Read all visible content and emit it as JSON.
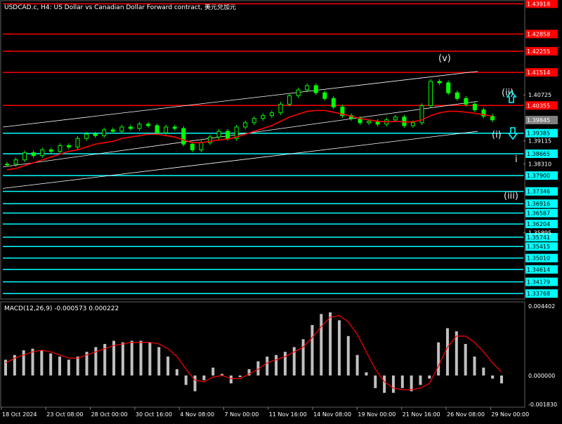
{
  "chart_data": {
    "type": "line",
    "title": "USDCAD.c, H4: US Dollar vs Canadian Dollar Forward contract, 美元兑加元",
    "price_axis": {
      "ylim": [
        1.336,
        1.44
      ],
      "tick_labels": [
        "1.40725",
        "1.39115",
        "1.38310",
        "1.35895"
      ]
    },
    "time_axis": {
      "labels": [
        "18 Oct 2024",
        "23 Oct 08:00",
        "28 Oct 00:00",
        "30 Oct 16:00",
        "4 Nov 08:00",
        "7 Nov 00:00",
        "11 Nov 16:00",
        "14 Nov 08:00",
        "19 Nov 00:00",
        "21 Nov 16:00",
        "26 Nov 08:00",
        "29 Nov 00:00"
      ]
    },
    "current_price": "1.39845",
    "resistance_levels": [
      "1.43918",
      "1.42858",
      "1.42255",
      "1.41514",
      "1.40355"
    ],
    "support_levels": [
      "1.39385",
      "1.38665",
      "1.37900",
      "1.37346",
      "1.36916",
      "1.36587",
      "1.36204",
      "1.35741",
      "1.35415",
      "1.35010",
      "1.34614",
      "1.34179",
      "1.33768"
    ],
    "level_values": {
      "resistance": [
        1.43918,
        1.42858,
        1.42255,
        1.41514,
        1.40355
      ],
      "support": [
        1.39385,
        1.38665,
        1.379,
        1.37346,
        1.36916,
        1.36587,
        1.36204,
        1.35741,
        1.35415,
        1.3501,
        1.34614,
        1.34179,
        1.33768
      ]
    },
    "price_series": [
      1.383,
      1.3845,
      1.387,
      1.386,
      1.388,
      1.3875,
      1.3895,
      1.389,
      1.392,
      1.3935,
      1.393,
      1.395,
      1.3945,
      1.396,
      1.3955,
      1.397,
      1.3965,
      1.394,
      1.396,
      1.3955,
      1.39,
      1.388,
      1.3905,
      1.3925,
      1.3945,
      1.392,
      1.396,
      1.3975,
      1.399,
      1.4,
      1.401,
      1.404,
      1.407,
      1.409,
      1.4105,
      1.408,
      1.406,
      1.403,
      1.4,
      1.399,
      1.3975,
      1.398,
      1.397,
      1.3985,
      1.3995,
      1.3965,
      1.3975,
      1.4035,
      1.412,
      1.4115,
      1.408,
      1.406,
      1.404,
      1.402,
      1.3998,
      1.3985
    ],
    "moving_average": [
      1.381,
      1.3815,
      1.3825,
      1.3835,
      1.3845,
      1.3855,
      1.3865,
      1.3875,
      1.388,
      1.389,
      1.39,
      1.3905,
      1.391,
      1.392,
      1.3925,
      1.393,
      1.3935,
      1.3935,
      1.393,
      1.3925,
      1.3915,
      1.3905,
      1.3905,
      1.391,
      1.3915,
      1.3918,
      1.3925,
      1.3935,
      1.3945,
      1.3955,
      1.3965,
      1.398,
      1.3995,
      1.4005,
      1.4015,
      1.4018,
      1.4018,
      1.4012,
      1.4005,
      1.3998,
      1.399,
      1.3985,
      1.398,
      1.3978,
      1.398,
      1.3978,
      1.3978,
      1.3985,
      1.4,
      1.401,
      1.4015,
      1.4015,
      1.4012,
      1.4008,
      1.4003,
      1.3998
    ],
    "wave_labels": [
      "(v)",
      "(i)",
      "(ii)",
      "(iii)",
      "i"
    ],
    "macd": {
      "label": "MACD(12,26,9) -0.000573 0.000222",
      "ylim": [
        -0.00183,
        0.004402
      ],
      "tick_labels": [
        "0.004402",
        "0.000000",
        "-0.001830"
      ],
      "histogram": [
        0.001,
        0.0013,
        0.0016,
        0.0017,
        0.0016,
        0.0014,
        0.0012,
        0.001,
        0.0012,
        0.0015,
        0.0018,
        0.002,
        0.0022,
        0.0021,
        0.0022,
        0.0022,
        0.0021,
        0.0018,
        0.0012,
        0.0004,
        -0.0006,
        -0.001,
        -0.0003,
        0.0005,
        0.0001,
        -0.0005,
        -0.0001,
        0.0004,
        0.0009,
        0.0012,
        0.0013,
        0.0015,
        0.0018,
        0.0023,
        0.0032,
        0.0039,
        0.004,
        0.0035,
        0.0025,
        0.0013,
        0.0002,
        -0.0008,
        -0.0011,
        -0.0011,
        -0.0008,
        -0.001,
        -0.0006,
        -0.0002,
        0.0021,
        0.003,
        0.0028,
        0.002,
        0.0012,
        0.0005,
        -0.0002,
        -0.0005
      ],
      "signal": [
        0.0008,
        0.0011,
        0.0013,
        0.0015,
        0.0016,
        0.0015,
        0.0013,
        0.0011,
        0.0011,
        0.0013,
        0.0015,
        0.0017,
        0.0019,
        0.002,
        0.0021,
        0.0021,
        0.0021,
        0.002,
        0.0017,
        0.0012,
        0.0004,
        -0.0003,
        -0.0004,
        -0.0001,
        0.0,
        -0.0002,
        -0.0002,
        0.0001,
        0.0004,
        0.0008,
        0.001,
        0.0012,
        0.0015,
        0.0018,
        0.0024,
        0.0031,
        0.0037,
        0.0038,
        0.0034,
        0.0026,
        0.0015,
        0.0004,
        -0.0004,
        -0.0008,
        -0.0009,
        -0.0009,
        -0.0008,
        -0.0005,
        0.0006,
        0.0018,
        0.0025,
        0.0025,
        0.0021,
        0.0015,
        0.0008,
        0.0002
      ]
    },
    "colors": {
      "background": "#000000",
      "candle": "#00ff00",
      "moving_average": "#ff0000",
      "resistance": "#ff0000",
      "support": "#00ffff",
      "channel": "#ffffff",
      "macd_histogram": "#c0c0c0",
      "macd_signal": "#ff0000",
      "price_tag_current": "#808080"
    },
    "grid": false,
    "legend": "none"
  }
}
